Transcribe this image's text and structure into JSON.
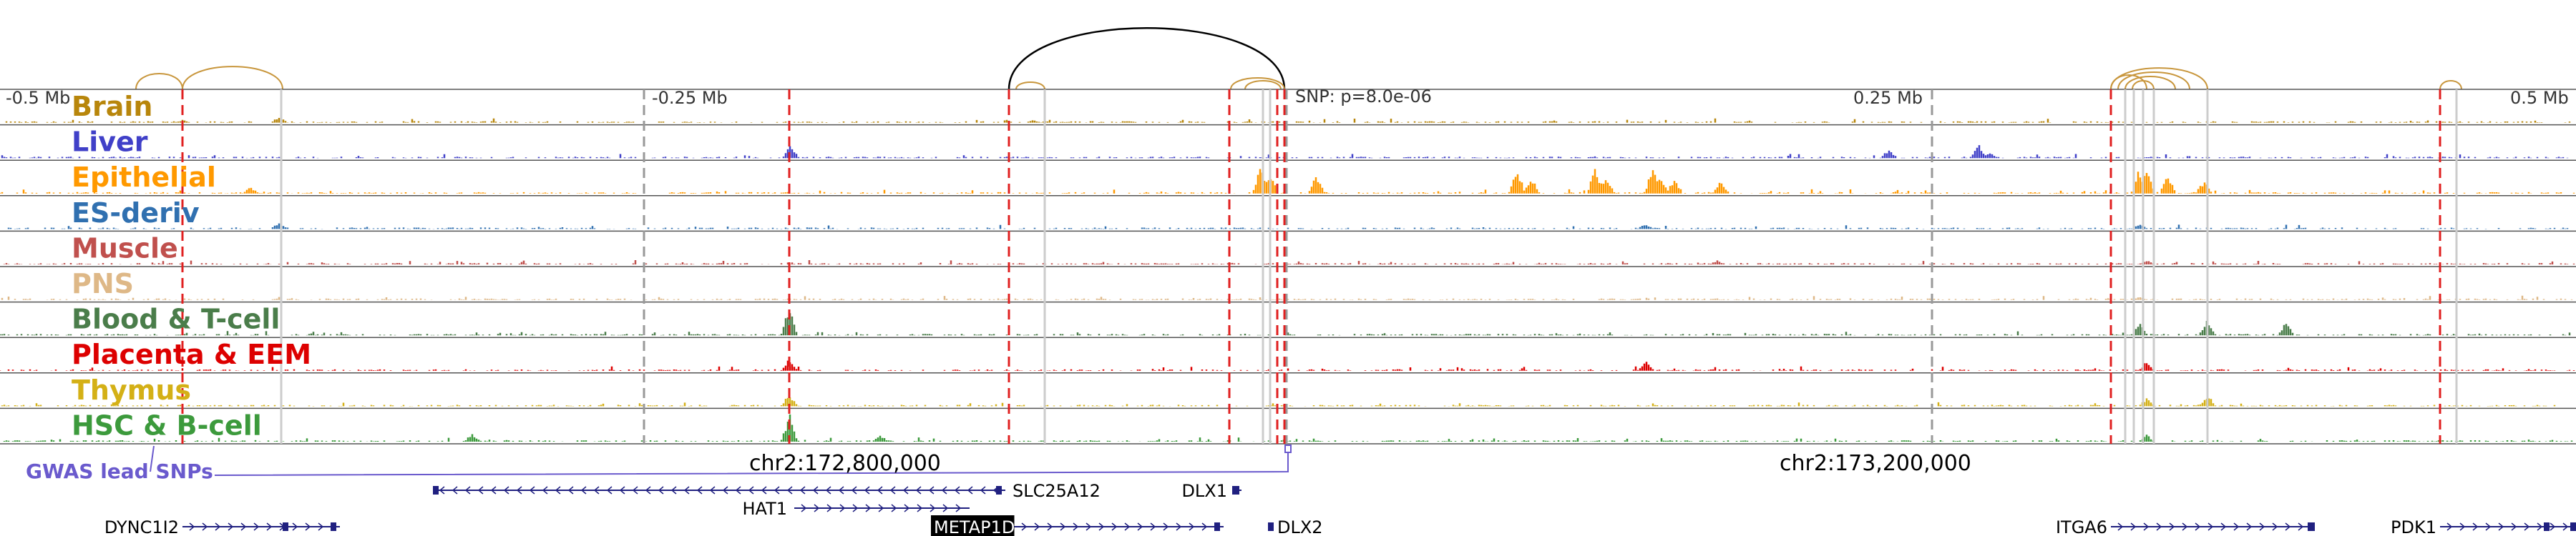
{
  "axis": {
    "ticks": [
      {
        "label": "-0.5 Mb",
        "pos": -0.5
      },
      {
        "label": "-0.25 Mb",
        "pos": -0.25
      },
      {
        "label": "0.25 Mb",
        "pos": 0.25
      },
      {
        "label": "0.5 Mb",
        "pos": 0.5
      }
    ],
    "snp_label": "SNP: p=8.0e-06",
    "coord_labels": [
      "chr2:172,800,000",
      "chr2:173,200,000"
    ]
  },
  "tracks": [
    {
      "label": "Brain",
      "color": "#b8860b"
    },
    {
      "label": "Liver",
      "color": "#4040c8"
    },
    {
      "label": "Epithelial",
      "color": "#ff9900"
    },
    {
      "label": "ES-deriv",
      "color": "#3070b0"
    },
    {
      "label": "Muscle",
      "color": "#c0504d"
    },
    {
      "label": "PNS",
      "color": "#deb887"
    },
    {
      "label": "Blood & T-cell",
      "color": "#4a7d4a"
    },
    {
      "label": "Placenta & EEM",
      "color": "#dd0000"
    },
    {
      "label": "Thymus",
      "color": "#d4b016"
    },
    {
      "label": "HSC & B-cell",
      "color": "#3c9a3c"
    }
  ],
  "gwas_label": "GWAS lead SNPs",
  "genes": [
    {
      "name": "SLC25A12",
      "strand": "-"
    },
    {
      "name": "DLX1",
      "strand": "-"
    },
    {
      "name": "HAT1",
      "strand": "+"
    },
    {
      "name": "DYNC1I2",
      "strand": "+"
    },
    {
      "name": "METAP1D",
      "strand": "+",
      "highlight": true
    },
    {
      "name": "DLX2",
      "strand": "-"
    },
    {
      "name": "ITGA6",
      "strand": "+"
    },
    {
      "name": "PDK1",
      "strand": "+"
    }
  ],
  "colors": {
    "gwas": "#6a5acd",
    "red_line": "#e02020",
    "gene": "#202080"
  }
}
